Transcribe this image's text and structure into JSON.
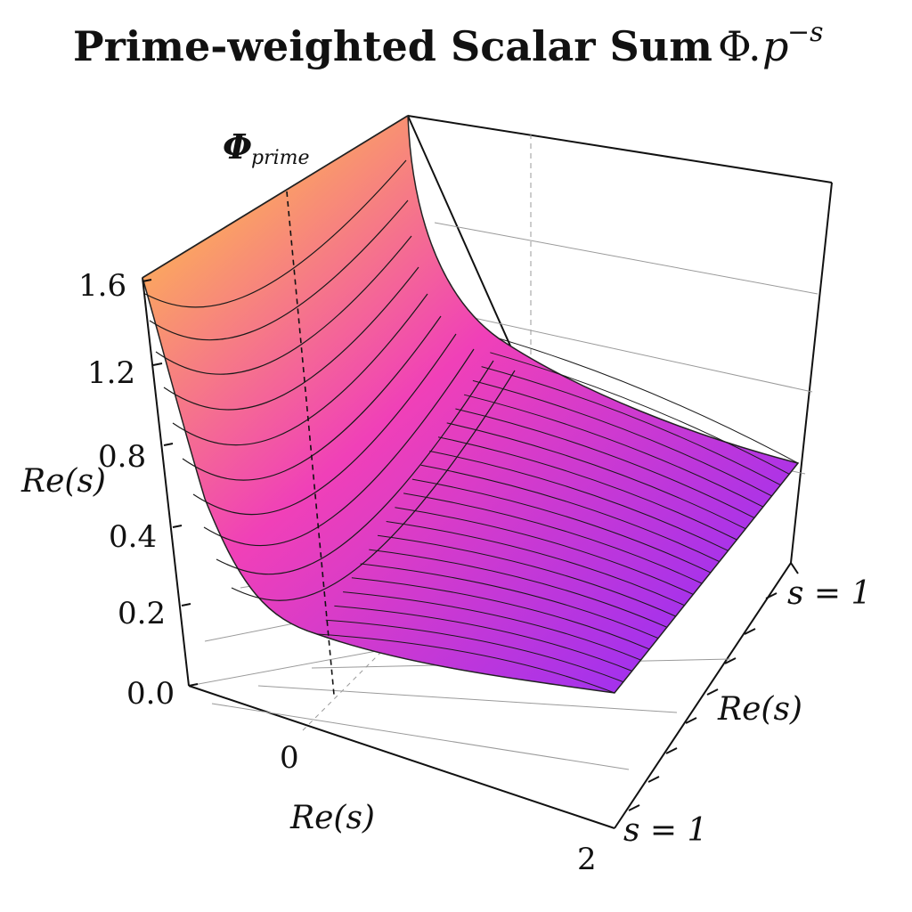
{
  "title": {
    "text": "Prime-weighted Scalar Sum",
    "symbol": "Φ",
    "operator": ".",
    "base": "p",
    "exponent": "−s"
  },
  "chart_data": {
    "type": "surface3d",
    "colormap": "spring-to-purple (yellow high, magenta mid, violet low)",
    "colors": {
      "high": "#ffd23a",
      "mid": "#f040b8",
      "low": "#8a2dff"
    },
    "z_axis": {
      "label_main": "Φ",
      "label_sub": "prime",
      "side_label": "Re(s)",
      "ticks": [
        "0.0",
        "0.2",
        "0.4",
        "0.8",
        "1.2",
        "1.6"
      ],
      "range": [
        0,
        1.6
      ]
    },
    "x_axis": {
      "label": "Re(s)",
      "ticks": [
        "0",
        "2"
      ],
      "range": [
        0,
        2
      ]
    },
    "y_axis": {
      "label": "Re(s)",
      "ticks": [
        "s = 1",
        "s = 1"
      ]
    },
    "surface": {
      "description_values": "Φ decays rapidly with Re(s): starts near 1.6 along the back edge at Re(s)=0, flattens toward ~0.1 for large Re(s)",
      "profile_y": [
        1.6,
        1.05,
        0.62,
        0.38,
        0.25,
        0.18,
        0.15,
        0.13,
        0.12,
        0.11,
        0.1
      ],
      "profile_x": [
        0,
        0.2,
        0.4,
        0.6,
        0.8,
        1.0,
        1.2,
        1.4,
        1.6,
        1.8,
        2.0
      ]
    },
    "grid": true
  }
}
